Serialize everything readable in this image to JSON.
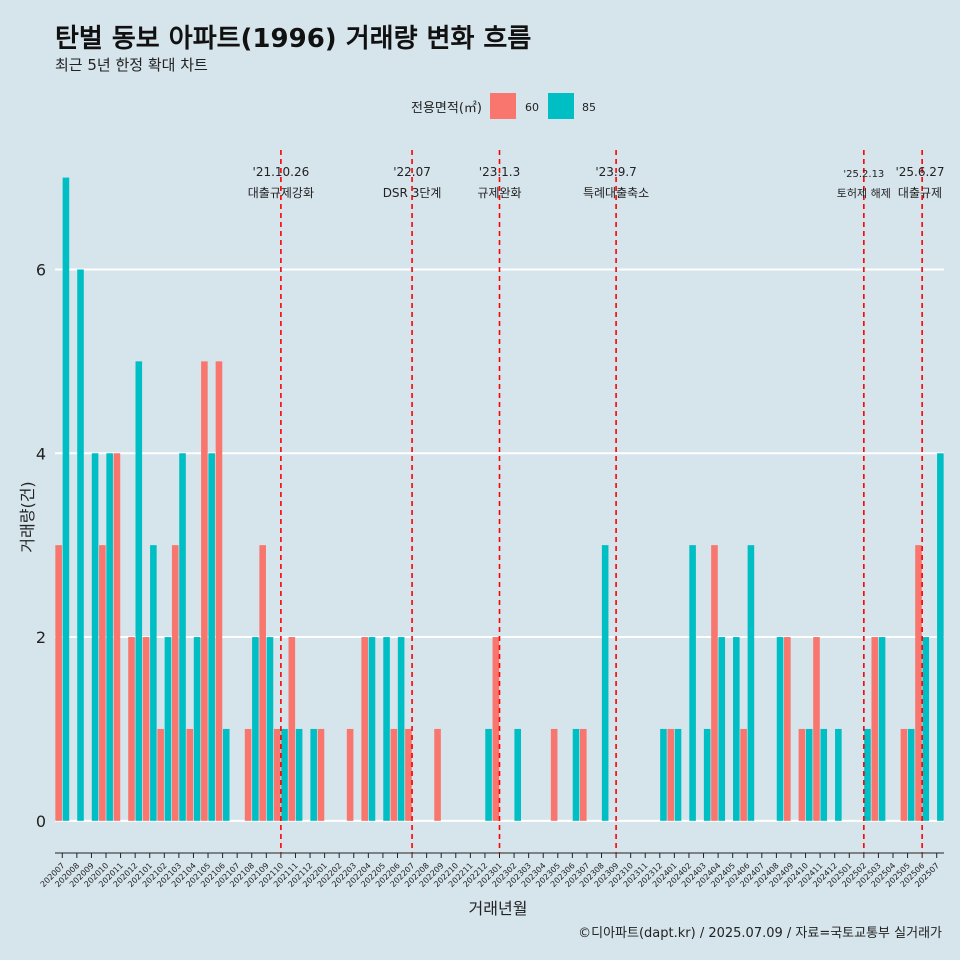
{
  "title": "탄벌 동보 아파트(1996) 거래량 변화 흐름",
  "subtitle": "최근 5년 한정 확대 차트",
  "caption": "©디아파트(dapt.kr) / 2025.07.09 / 자료=국토교통부 실거래가",
  "colors": {
    "s60": "#f8766d",
    "s85": "#00bfc4",
    "event": "#ff0000",
    "grid": "#ffffff"
  },
  "chart_data": {
    "type": "bar",
    "xlabel": "거래년월",
    "ylabel": "거래량(건)",
    "ylim": [
      -0.35,
      7.3
    ],
    "yticks": [
      0,
      2,
      4,
      6
    ],
    "legend": {
      "title": "전용면적(㎡)",
      "placement": "top-center"
    },
    "categories": [
      "202007",
      "202008",
      "202009",
      "202010",
      "202011",
      "202012",
      "202101",
      "202102",
      "202103",
      "202104",
      "202105",
      "202106",
      "202107",
      "202108",
      "202109",
      "202110",
      "202111",
      "202112",
      "202201",
      "202202",
      "202203",
      "202204",
      "202205",
      "202206",
      "202207",
      "202208",
      "202209",
      "202210",
      "202211",
      "202212",
      "202301",
      "202302",
      "202303",
      "202304",
      "202305",
      "202306",
      "202307",
      "202308",
      "202309",
      "202310",
      "202311",
      "202312",
      "202401",
      "202402",
      "202403",
      "202404",
      "202405",
      "202406",
      "202407",
      "202408",
      "202409",
      "202410",
      "202411",
      "202412",
      "202501",
      "202502",
      "202503",
      "202504",
      "202505",
      "202506",
      "202507"
    ],
    "series": [
      {
        "name": "60",
        "values": [
          3,
          0,
          0,
          3,
          4,
          2,
          2,
          1,
          3,
          1,
          5,
          5,
          0,
          1,
          3,
          1,
          2,
          0,
          1,
          0,
          1,
          2,
          0,
          1,
          1,
          0,
          1,
          0,
          0,
          0,
          2,
          0,
          0,
          0,
          1,
          0,
          1,
          0,
          0,
          0,
          0,
          0,
          1,
          0,
          0,
          3,
          0,
          1,
          0,
          0,
          2,
          1,
          2,
          0,
          0,
          0,
          2,
          0,
          1,
          3,
          0
        ]
      },
      {
        "name": "85",
        "values": [
          7,
          6,
          4,
          4,
          0,
          5,
          3,
          2,
          4,
          2,
          4,
          1,
          0,
          2,
          2,
          1,
          1,
          1,
          0,
          0,
          0,
          2,
          2,
          2,
          0,
          0,
          0,
          0,
          0,
          1,
          0,
          1,
          0,
          0,
          0,
          1,
          0,
          3,
          0,
          0,
          0,
          1,
          1,
          3,
          1,
          2,
          2,
          3,
          0,
          2,
          0,
          1,
          1,
          1,
          0,
          1,
          2,
          0,
          1,
          2,
          4
        ]
      }
    ],
    "events": [
      {
        "month": "202110",
        "date": "'21.10.26",
        "label": "대출규제강화"
      },
      {
        "month": "202207",
        "date": "'22.07",
        "label": "DSR 3단계"
      },
      {
        "month": "202301",
        "date": "'23.1.3",
        "label": "규제완화"
      },
      {
        "month": "202309",
        "date": "'23.9.7",
        "label": "특례대출축소"
      },
      {
        "month": "202502",
        "date": "'25.2.13",
        "label": "토허제 해제"
      },
      {
        "month": "202506",
        "date": "'25.6.27",
        "label": "대출규제"
      }
    ]
  }
}
